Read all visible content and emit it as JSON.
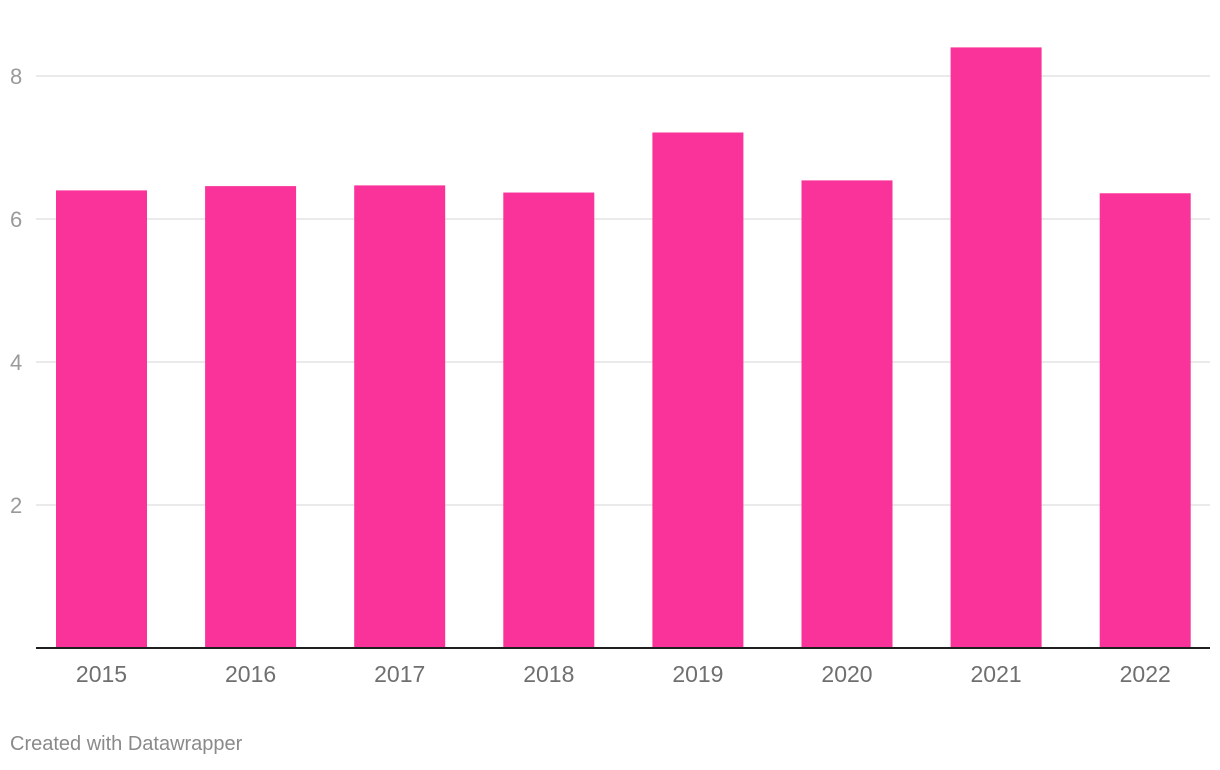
{
  "chart_data": {
    "type": "bar",
    "categories": [
      "2015",
      "2016",
      "2017",
      "2018",
      "2019",
      "2020",
      "2021",
      "2022"
    ],
    "values": [
      6.4,
      6.46,
      6.47,
      6.37,
      7.21,
      6.54,
      8.4,
      6.36
    ],
    "y_ticks": [
      "2",
      "4",
      "6",
      "8"
    ],
    "ylim": [
      0,
      8.4
    ],
    "grid": true,
    "bar_color": "#fa339a"
  },
  "footer": {
    "credit": "Created with Datawrapper"
  }
}
